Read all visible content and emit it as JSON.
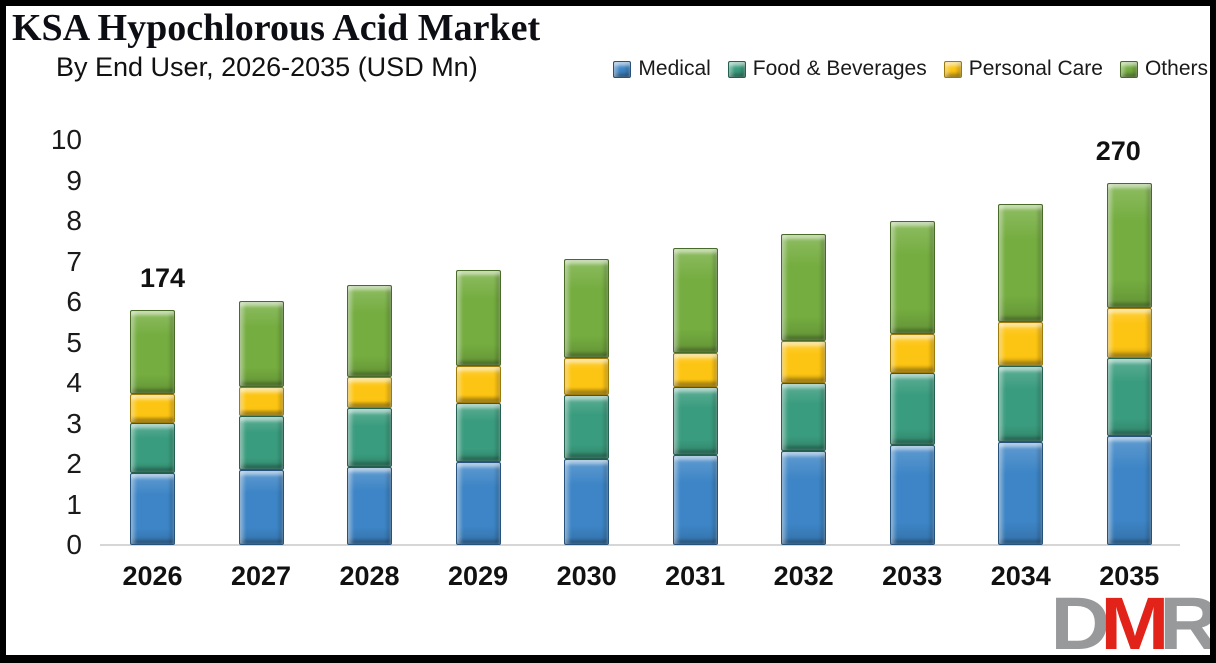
{
  "header": {
    "title": "KSA Hypochlorous Acid Market",
    "subtitle": "By End User, 2026-2035 (USD Mn)"
  },
  "chart_data": {
    "type": "bar",
    "stacked": true,
    "title": "KSA Hypochlorous Acid Market",
    "subtitle": "By End User, 2026-2035 (USD Mn)",
    "xlabel": "",
    "ylabel": "",
    "ylim": [
      0,
      10
    ],
    "ytick_step": 1,
    "grid": false,
    "legend_position": "top-right",
    "categories": [
      "2026",
      "2027",
      "2028",
      "2029",
      "2030",
      "2031",
      "2032",
      "2033",
      "2034",
      "2035"
    ],
    "series": [
      {
        "name": "Medical",
        "color": "#3d85c6",
        "values": [
          1.77,
          1.85,
          1.93,
          2.05,
          2.13,
          2.23,
          2.32,
          2.46,
          2.55,
          2.68
        ]
      },
      {
        "name": "Food & Beverages",
        "color": "#3a9c7e",
        "values": [
          1.25,
          1.33,
          1.45,
          1.45,
          1.57,
          1.66,
          1.68,
          1.78,
          1.88,
          1.93
        ]
      },
      {
        "name": "Personal Care",
        "color": "#fdc513",
        "values": [
          0.72,
          0.72,
          0.78,
          0.93,
          0.91,
          0.86,
          1.03,
          0.97,
          1.07,
          1.23
        ]
      },
      {
        "name": "Others",
        "color": "#75ad40",
        "values": [
          2.06,
          2.12,
          2.26,
          2.35,
          2.46,
          2.58,
          2.64,
          2.79,
          2.91,
          3.1
        ]
      }
    ],
    "totals_labeled": [
      {
        "category": "2026",
        "text": "174",
        "dx": 10
      },
      {
        "category": "2035",
        "text": "270",
        "dx": -11
      }
    ]
  },
  "logo": {
    "letters": [
      {
        "text": "D",
        "color": "#97999b"
      },
      {
        "text": "M",
        "color": "#e2231a"
      },
      {
        "text": "R",
        "color": "#97999b"
      }
    ]
  }
}
